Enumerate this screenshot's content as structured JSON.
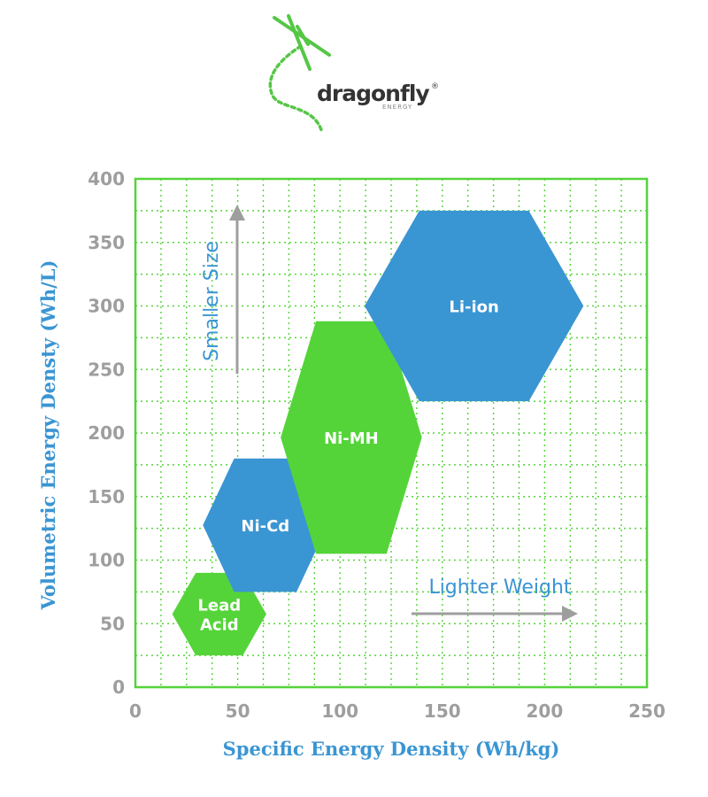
{
  "brand": {
    "name": "dragonfly",
    "registered": "®",
    "sub": "ENERGY",
    "color": "#55c745"
  },
  "colors": {
    "green": "#55d43a",
    "blue": "#3a95d3",
    "tick": "#9e9e9e",
    "arrow": "#9e9e9e",
    "frame": "#55d43a"
  },
  "chart_data": {
    "type": "scatter",
    "xlabel": "Specific Energy Density (Wh/kg)",
    "ylabel": "Volumetric Energy Densty (Wh/L)",
    "xlim": [
      0,
      250
    ],
    "ylim": [
      0,
      400
    ],
    "xticks": [
      0,
      50,
      100,
      150,
      200,
      250
    ],
    "yticks": [
      0,
      50,
      100,
      150,
      200,
      250,
      300,
      350,
      400
    ],
    "grid": true,
    "series": [
      {
        "name": "Lead Acid",
        "label_lines": [
          "Lead",
          "Acid"
        ],
        "color": "#55d43a",
        "x_range": [
          18,
          64
        ],
        "y_range": [
          25,
          90
        ]
      },
      {
        "name": "Ni-Cd",
        "label_lines": [
          "Ni-Cd"
        ],
        "color": "#3a95d3",
        "x_range": [
          33,
          94
        ],
        "y_range": [
          75,
          180
        ]
      },
      {
        "name": "Ni-MH",
        "label_lines": [
          "Ni-MH"
        ],
        "color": "#55d43a",
        "x_range": [
          71,
          140
        ],
        "y_range": [
          105,
          288
        ]
      },
      {
        "name": "Li-ion",
        "label_lines": [
          "Li-ion"
        ],
        "color": "#3a95d3",
        "x_range": [
          112,
          219
        ],
        "y_range": [
          225,
          375
        ]
      }
    ],
    "annotations": [
      {
        "text": "Smaller Size",
        "direction": "up"
      },
      {
        "text": "Lighter Weight",
        "direction": "right"
      }
    ]
  }
}
